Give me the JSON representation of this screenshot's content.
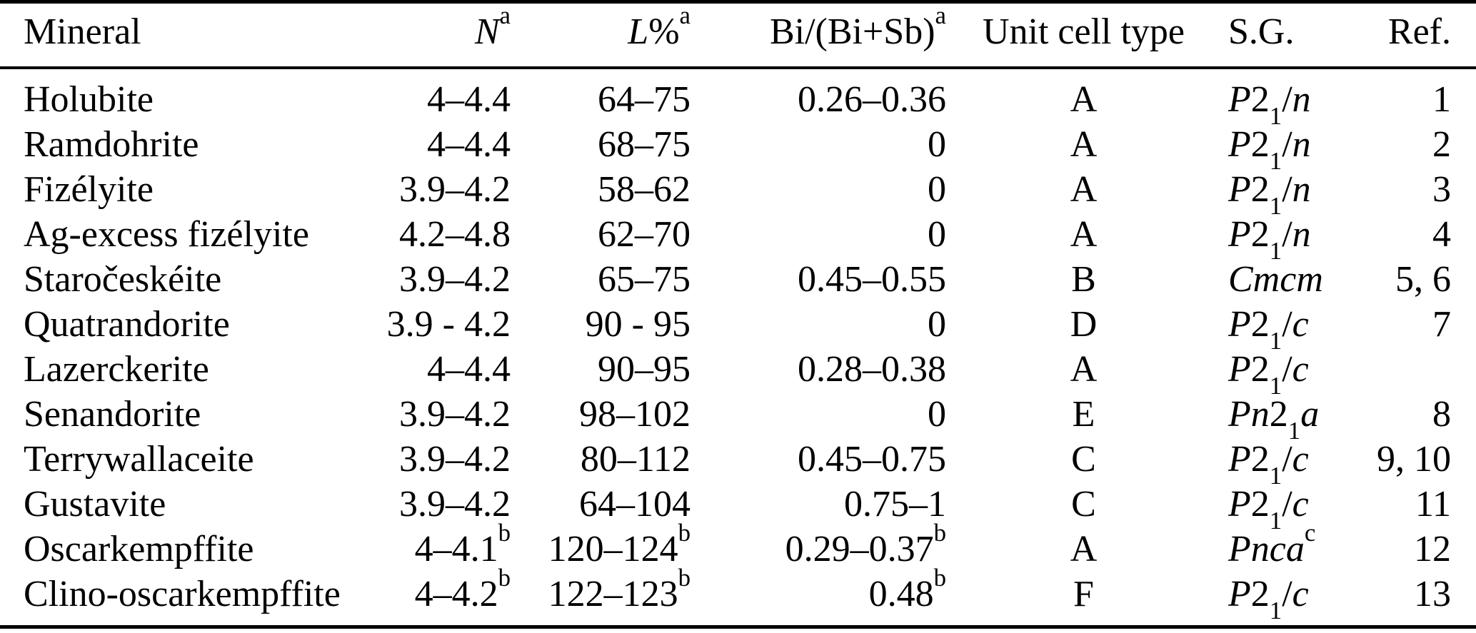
{
  "page": {
    "background_color": "#ffffff",
    "text_color": "#000000"
  },
  "table": {
    "header": {
      "mineral": "Mineral",
      "n": "*N*^a",
      "l": "*L*%^a",
      "bi": "Bi/(Bi+Sb)^a",
      "cell": "Unit cell type",
      "sg": "S.G.",
      "ref": "Ref."
    },
    "rows": [
      {
        "mineral": "Holubite",
        "n": "4–4.4",
        "l": "64–75",
        "bi": "0.26–0.36",
        "cell": "A",
        "sg": "*P*2_1/*n*",
        "ref": "1"
      },
      {
        "mineral": "Ramdohrite",
        "n": "4–4.4",
        "l": "68–75",
        "bi": "0",
        "cell": "A",
        "sg": "*P*2_1/*n*",
        "ref": "2"
      },
      {
        "mineral": "Fizélyite",
        "n": "3.9–4.2",
        "l": "58–62",
        "bi": "0",
        "cell": "A",
        "sg": "*P*2_1/*n*",
        "ref": "3"
      },
      {
        "mineral": "Ag-excess fizélyite",
        "n": "4.2–4.8",
        "l": "62–70",
        "bi": "0",
        "cell": "A",
        "sg": "*P*2_1/*n*",
        "ref": "4"
      },
      {
        "mineral": "Staročeskéite",
        "n": "3.9–4.2",
        "l": "65–75",
        "bi": "0.45–0.55",
        "cell": "B",
        "sg": "*Cmcm*",
        "ref": "5, 6"
      },
      {
        "mineral": "Quatrandorite",
        "n": "3.9 - 4.2",
        "l": "90 - 95",
        "bi": "0",
        "cell": "D",
        "sg": "*P*2_1/*c*",
        "ref": "7"
      },
      {
        "mineral": "Lazerckerite",
        "n": "4–4.4",
        "l": "90–95",
        "bi": "0.28–0.38",
        "cell": "A",
        "sg": "*P*2_1/*c*",
        "ref": ""
      },
      {
        "mineral": "Senandorite",
        "n": "3.9–4.2",
        "l": "98–102",
        "bi": "0",
        "cell": "E",
        "sg": "*Pn*2_1*a*",
        "ref": "8"
      },
      {
        "mineral": "Terrywallaceite",
        "n": "3.9–4.2",
        "l": "80–112",
        "bi": "0.45–0.75",
        "cell": "C",
        "sg": "*P*2_1/*c*",
        "ref": "9, 10"
      },
      {
        "mineral": "Gustavite",
        "n": "3.9–4.2",
        "l": "64–104",
        "bi": "0.75–1",
        "cell": "C",
        "sg": "*P*2_1/*c*",
        "ref": "11"
      },
      {
        "mineral": "Oscarkempffite",
        "n": "4–4.1^b",
        "l": "120–124^b",
        "bi": "0.29–0.37^b",
        "cell": "A",
        "sg": "*Pnca*^c",
        "ref": "12"
      },
      {
        "mineral": "Clino-oscarkempffite",
        "n": "4–4.2^b",
        "l": "122–123^b",
        "bi": "0.48^b",
        "cell": "F",
        "sg": "*P*2_1/*c*",
        "ref": "13"
      }
    ]
  }
}
